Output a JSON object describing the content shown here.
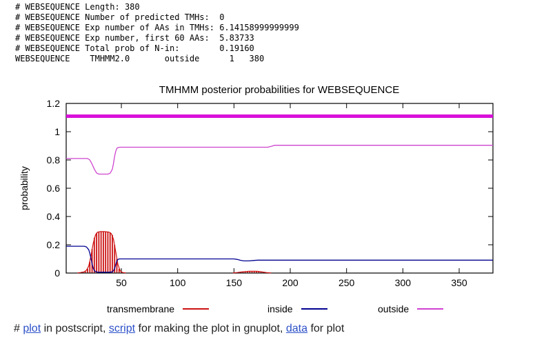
{
  "header": {
    "lines": [
      "# WEBSEQUENCE Length: 380",
      "# WEBSEQUENCE Number of predicted TMHs:  0",
      "# WEBSEQUENCE Exp number of AAs in TMHs: 6.14158999999999",
      "# WEBSEQUENCE Exp number, first 60 AAs:  5.83733",
      "# WEBSEQUENCE Total prob of N-in:        0.19160",
      "WEBSEQUENCE    TMHMM2.0       outside      1   380"
    ]
  },
  "chart_data": {
    "type": "line",
    "title": "TMHMM posterior probabilities for WEBSEQUENCE",
    "xlabel": "",
    "ylabel": "probability",
    "xlim": [
      1,
      380
    ],
    "ylim": [
      0,
      1.2
    ],
    "x_ticks": [
      50,
      100,
      150,
      200,
      250,
      300,
      350
    ],
    "y_ticks": [
      0,
      0.2,
      0.4,
      0.6,
      0.8,
      1,
      1.2
    ],
    "grid": false,
    "legend_position": "below-plot",
    "topology_bar": {
      "label": "outside",
      "from": 1,
      "to": 380,
      "y": 1.11,
      "color": "#d911d9",
      "thickness": 5
    },
    "series": [
      {
        "name": "transmembrane",
        "type": "impulses",
        "color": "#cc1111",
        "points": [
          [
            12,
            0.002
          ],
          [
            14,
            0.004
          ],
          [
            16,
            0.006
          ],
          [
            18,
            0.012
          ],
          [
            20,
            0.03
          ],
          [
            22,
            0.08
          ],
          [
            24,
            0.17
          ],
          [
            26,
            0.25
          ],
          [
            28,
            0.285
          ],
          [
            30,
            0.292
          ],
          [
            32,
            0.293
          ],
          [
            34,
            0.293
          ],
          [
            36,
            0.293
          ],
          [
            38,
            0.291
          ],
          [
            40,
            0.288
          ],
          [
            42,
            0.27
          ],
          [
            44,
            0.2
          ],
          [
            46,
            0.1
          ],
          [
            48,
            0.03
          ],
          [
            50,
            0.008
          ],
          [
            152,
            0.003
          ],
          [
            154,
            0.005
          ],
          [
            156,
            0.007
          ],
          [
            158,
            0.009
          ],
          [
            160,
            0.011
          ],
          [
            162,
            0.012
          ],
          [
            164,
            0.013
          ],
          [
            166,
            0.013
          ],
          [
            168,
            0.013
          ],
          [
            170,
            0.012
          ],
          [
            172,
            0.011
          ],
          [
            174,
            0.009
          ],
          [
            176,
            0.007
          ],
          [
            178,
            0.004
          ],
          [
            180,
            0.002
          ]
        ]
      },
      {
        "name": "transmembrane-envelope",
        "type": "line",
        "color": "#cc1111",
        "width": 1.2,
        "points": [
          [
            11,
            0.001
          ],
          [
            14,
            0.004
          ],
          [
            17,
            0.009
          ],
          [
            19,
            0.02
          ],
          [
            21,
            0.05
          ],
          [
            23,
            0.12
          ],
          [
            25,
            0.21
          ],
          [
            27,
            0.27
          ],
          [
            29,
            0.29
          ],
          [
            31,
            0.293
          ],
          [
            35,
            0.293
          ],
          [
            39,
            0.29
          ],
          [
            41,
            0.28
          ],
          [
            43,
            0.24
          ],
          [
            45,
            0.15
          ],
          [
            47,
            0.06
          ],
          [
            49,
            0.015
          ],
          [
            51,
            0.004
          ],
          [
            54,
            0.001
          ]
        ]
      },
      {
        "name": "transmembrane-envelope-2",
        "type": "line",
        "color": "#cc1111",
        "width": 1.2,
        "points": [
          [
            149,
            0.001
          ],
          [
            153,
            0.004
          ],
          [
            157,
            0.008
          ],
          [
            161,
            0.011
          ],
          [
            164,
            0.013
          ],
          [
            168,
            0.013
          ],
          [
            171,
            0.012
          ],
          [
            175,
            0.008
          ],
          [
            179,
            0.003
          ],
          [
            183,
            0.001
          ]
        ]
      },
      {
        "name": "inside",
        "type": "line",
        "color": "#000090",
        "width": 1.3,
        "points": [
          [
            1,
            0.19
          ],
          [
            17,
            0.19
          ],
          [
            19,
            0.185
          ],
          [
            21,
            0.165
          ],
          [
            22,
            0.14
          ],
          [
            23,
            0.105
          ],
          [
            24,
            0.065
          ],
          [
            25,
            0.035
          ],
          [
            26,
            0.018
          ],
          [
            27,
            0.01
          ],
          [
            29,
            0.006
          ],
          [
            40,
            0.006
          ],
          [
            42,
            0.009
          ],
          [
            43,
            0.016
          ],
          [
            44,
            0.032
          ],
          [
            45,
            0.06
          ],
          [
            46,
            0.085
          ],
          [
            47,
            0.096
          ],
          [
            48,
            0.1
          ],
          [
            150,
            0.1
          ],
          [
            153,
            0.096
          ],
          [
            156,
            0.09
          ],
          [
            159,
            0.086
          ],
          [
            163,
            0.086
          ],
          [
            167,
            0.089
          ],
          [
            171,
            0.091
          ],
          [
            380,
            0.091
          ]
        ]
      },
      {
        "name": "outside",
        "type": "line",
        "color": "#cf44cf",
        "width": 1.3,
        "points": [
          [
            1,
            0.81
          ],
          [
            20,
            0.81
          ],
          [
            22,
            0.8
          ],
          [
            24,
            0.77
          ],
          [
            26,
            0.735
          ],
          [
            28,
            0.708
          ],
          [
            30,
            0.7
          ],
          [
            38,
            0.7
          ],
          [
            40,
            0.706
          ],
          [
            42,
            0.735
          ],
          [
            43,
            0.775
          ],
          [
            44,
            0.825
          ],
          [
            45,
            0.862
          ],
          [
            46,
            0.882
          ],
          [
            47,
            0.888
          ],
          [
            49,
            0.89
          ],
          [
            180,
            0.89
          ],
          [
            183,
            0.896
          ],
          [
            186,
            0.904
          ],
          [
            380,
            0.904
          ]
        ]
      }
    ]
  },
  "legend": {
    "items": [
      {
        "label": "transmembrane",
        "color": "#cc1111"
      },
      {
        "label": "inside",
        "color": "#000090"
      },
      {
        "label": "outside",
        "color": "#d040d0"
      }
    ]
  },
  "footer": {
    "prefix": "# ",
    "link_plot": "plot",
    "mid1": " in postscript, ",
    "link_script": "script",
    "mid2": " for making the plot in gnuplot, ",
    "link_data": "data",
    "suffix": " for plot"
  }
}
